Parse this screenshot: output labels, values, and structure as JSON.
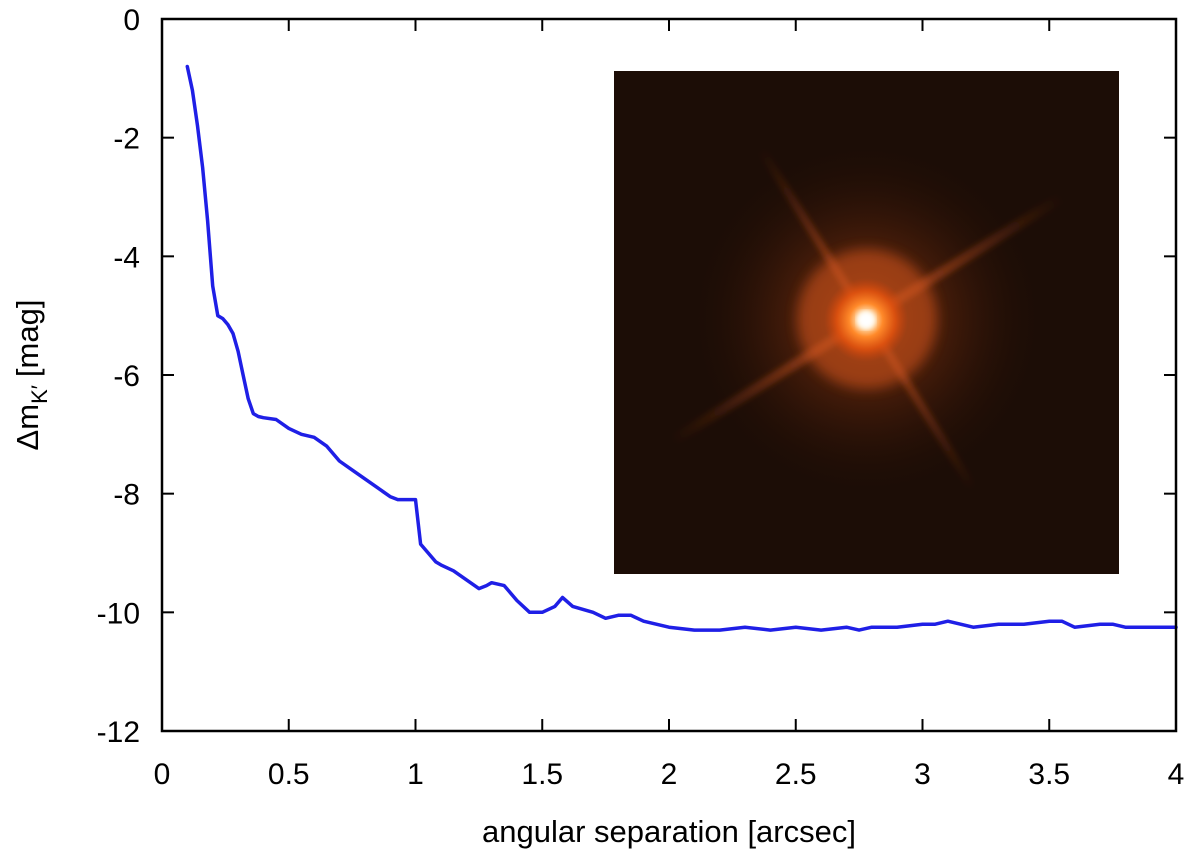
{
  "chart_data": {
    "type": "line",
    "title": "",
    "xlabel": "angular separation [arcsec]",
    "ylabel_main": "Δm",
    "ylabel_sub": "K′",
    "ylabel_unit": "[mag]",
    "xlim": [
      0,
      4
    ],
    "ylim": [
      -12,
      0
    ],
    "x_ticks": [
      0,
      0.5,
      1,
      1.5,
      2,
      2.5,
      3,
      3.5,
      4
    ],
    "x_tick_labels": [
      "0",
      "0.5",
      "1",
      "1.5",
      "2",
      "2.5",
      "3",
      "3.5",
      "4"
    ],
    "y_ticks": [
      0,
      -2,
      -4,
      -6,
      -8,
      -10,
      -12
    ],
    "y_tick_labels": [
      "0",
      "-2",
      "-4",
      "-6",
      "-8",
      "-10",
      "-12"
    ],
    "grid": false,
    "legend": "none",
    "series": [
      {
        "color": "#1f1fe6",
        "x": [
          0.1,
          0.12,
          0.14,
          0.16,
          0.18,
          0.2,
          0.22,
          0.24,
          0.26,
          0.28,
          0.3,
          0.32,
          0.34,
          0.36,
          0.38,
          0.4,
          0.45,
          0.5,
          0.55,
          0.6,
          0.65,
          0.7,
          0.75,
          0.8,
          0.85,
          0.9,
          0.93,
          0.96,
          1.0,
          1.02,
          1.05,
          1.08,
          1.1,
          1.15,
          1.2,
          1.25,
          1.28,
          1.3,
          1.35,
          1.4,
          1.45,
          1.5,
          1.55,
          1.58,
          1.62,
          1.7,
          1.75,
          1.8,
          1.85,
          1.9,
          1.95,
          2.0,
          2.1,
          2.2,
          2.3,
          2.4,
          2.5,
          2.6,
          2.7,
          2.75,
          2.8,
          2.9,
          3.0,
          3.05,
          3.1,
          3.2,
          3.3,
          3.4,
          3.5,
          3.55,
          3.6,
          3.7,
          3.75,
          3.8,
          3.9,
          4.0
        ],
        "y": [
          -0.8,
          -1.2,
          -1.8,
          -2.5,
          -3.4,
          -4.5,
          -5.0,
          -5.05,
          -5.15,
          -5.3,
          -5.6,
          -6.0,
          -6.4,
          -6.65,
          -6.7,
          -6.72,
          -6.75,
          -6.9,
          -7.0,
          -7.05,
          -7.2,
          -7.45,
          -7.6,
          -7.75,
          -7.9,
          -8.05,
          -8.1,
          -8.1,
          -8.1,
          -8.85,
          -9.0,
          -9.15,
          -9.2,
          -9.3,
          -9.45,
          -9.6,
          -9.55,
          -9.5,
          -9.55,
          -9.8,
          -10.0,
          -10.0,
          -9.9,
          -9.75,
          -9.9,
          -10.0,
          -10.1,
          -10.05,
          -10.05,
          -10.15,
          -10.2,
          -10.25,
          -10.3,
          -10.3,
          -10.25,
          -10.3,
          -10.25,
          -10.3,
          -10.25,
          -10.3,
          -10.25,
          -10.25,
          -10.2,
          -10.2,
          -10.15,
          -10.25,
          -10.2,
          -10.2,
          -10.15,
          -10.15,
          -10.25,
          -10.2,
          -10.2,
          -10.25,
          -10.25,
          -10.25
        ]
      }
    ],
    "inset": {
      "kind": "image",
      "subject": "adaptive-optics point spread function of a bright star",
      "background_color": "#1c0d06",
      "core_color": "#ffffff",
      "halo_color": "#ff6a1a"
    }
  }
}
